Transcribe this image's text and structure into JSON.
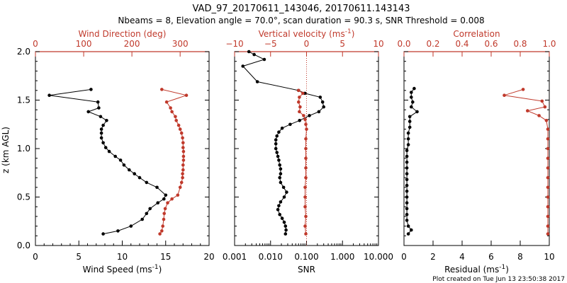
{
  "header": {
    "title": "VAD_97_20170611_143046, 20170611.143143",
    "subtitle": "Nbeams = 8, Elevation angle = 70.0°, scan duration = 90.3 s, SNR Threshold = 0.008"
  },
  "footer": {
    "created": "Plot created on Tue Jun 13 23:50:38 2017"
  },
  "y_axis": {
    "label": "z (km AGL)",
    "ylim": [
      0.0,
      2.0
    ],
    "ticks": [
      0.0,
      0.5,
      1.0,
      1.5,
      2.0
    ],
    "tick_labels": [
      "0.0",
      "0.5",
      "1.0",
      "1.5",
      "2.0"
    ]
  },
  "colors": {
    "black": "#000000",
    "red": "#c0392b"
  },
  "chart_data": [
    {
      "type": "line",
      "panel": "left",
      "grid": false,
      "ylim": [
        0.0,
        2.0
      ],
      "bottom_axis": {
        "label_main": "Wind Speed (ms",
        "label_sup": "-1",
        "label_end": ")",
        "xlim": [
          0,
          20
        ],
        "ticks": [
          0,
          5,
          10,
          15,
          20
        ],
        "tick_labels": [
          "0",
          "5",
          "10",
          "15",
          "20"
        ],
        "minor_ticks": [
          1,
          2,
          3,
          4,
          6,
          7,
          8,
          9,
          11,
          12,
          13,
          14,
          16,
          17,
          18,
          19
        ]
      },
      "top_axis": {
        "label": "Wind Direction (deg)",
        "xlim": [
          0,
          360
        ],
        "ticks": [
          0,
          100,
          200,
          300
        ],
        "tick_labels": [
          "0",
          "100",
          "200",
          "300"
        ]
      },
      "series": [
        {
          "axis": "bottom",
          "color": "#000000",
          "points": [
            [
              7.8,
              0.12
            ],
            [
              9.5,
              0.15
            ],
            [
              11,
              0.2
            ],
            [
              12.3,
              0.27
            ],
            [
              12.8,
              0.33
            ],
            [
              13.2,
              0.38
            ],
            [
              14.1,
              0.44
            ],
            [
              14.8,
              0.48
            ],
            [
              15,
              0.52
            ],
            [
              14,
              0.6
            ],
            [
              12.8,
              0.65
            ],
            [
              12,
              0.7
            ],
            [
              11.4,
              0.74
            ],
            [
              10.8,
              0.78
            ],
            [
              10.2,
              0.83
            ],
            [
              9.8,
              0.88
            ],
            [
              9.2,
              0.92
            ],
            [
              8.5,
              0.97
            ],
            [
              8.1,
              1.01
            ],
            [
              7.8,
              1.06
            ],
            [
              7.6,
              1.11
            ],
            [
              7.6,
              1.16
            ],
            [
              7.6,
              1.2
            ],
            [
              7.8,
              1.24
            ],
            [
              8.2,
              1.29
            ],
            [
              7.5,
              1.33
            ],
            [
              6.1,
              1.38
            ],
            [
              7.3,
              1.42
            ],
            [
              7.2,
              1.48
            ],
            [
              1.6,
              1.55
            ],
            [
              6.4,
              1.61
            ]
          ]
        },
        {
          "axis": "top",
          "color": "#c0392b",
          "points": [
            [
              258,
              0.12
            ],
            [
              262,
              0.15
            ],
            [
              264,
              0.2
            ],
            [
              266,
              0.27
            ],
            [
              267,
              0.33
            ],
            [
              269,
              0.38
            ],
            [
              274,
              0.44
            ],
            [
              283,
              0.48
            ],
            [
              295,
              0.52
            ],
            [
              300,
              0.6
            ],
            [
              303,
              0.65
            ],
            [
              305,
              0.7
            ],
            [
              305,
              0.74
            ],
            [
              306,
              0.78
            ],
            [
              306,
              0.83
            ],
            [
              307,
              0.88
            ],
            [
              307,
              0.92
            ],
            [
              307,
              0.97
            ],
            [
              306,
              1.01
            ],
            [
              306,
              1.06
            ],
            [
              305,
              1.11
            ],
            [
              303,
              1.16
            ],
            [
              300,
              1.2
            ],
            [
              297,
              1.24
            ],
            [
              292,
              1.29
            ],
            [
              290,
              1.33
            ],
            [
              283,
              1.38
            ],
            [
              280,
              1.42
            ],
            [
              272,
              1.48
            ],
            [
              313,
              1.55
            ],
            [
              262,
              1.61
            ]
          ]
        }
      ]
    },
    {
      "type": "line",
      "panel": "middle",
      "grid": false,
      "ylim": [
        0.0,
        2.0
      ],
      "bottom_axis": {
        "label": "SNR",
        "scale": "log",
        "xlim": [
          0.001,
          10.0
        ],
        "ticks": [
          0.001,
          0.01,
          0.1,
          1.0,
          10.0
        ],
        "tick_labels": [
          "0.001",
          "0.010",
          "0.100",
          "1.000",
          "10.000"
        ]
      },
      "top_axis": {
        "label_main": "Vertical velocity (ms",
        "label_sup": "-1",
        "label_end": ")",
        "xlim": [
          -10,
          10
        ],
        "ticks": [
          -10,
          -5,
          0,
          5,
          10
        ],
        "tick_labels": [
          "−10",
          "−5",
          "0",
          "5",
          "10"
        ]
      },
      "reference_line": {
        "axis": "top",
        "x": 0,
        "style": "dotted",
        "color": "#c0392b"
      },
      "series": [
        {
          "axis": "bottom",
          "color": "#000000",
          "points": [
            [
              0.026,
              0.12
            ],
            [
              0.027,
              0.16
            ],
            [
              0.026,
              0.2
            ],
            [
              0.024,
              0.24
            ],
            [
              0.021,
              0.28
            ],
            [
              0.018,
              0.32
            ],
            [
              0.016,
              0.37
            ],
            [
              0.017,
              0.41
            ],
            [
              0.019,
              0.45
            ],
            [
              0.024,
              0.5
            ],
            [
              0.028,
              0.55
            ],
            [
              0.023,
              0.6
            ],
            [
              0.019,
              0.65
            ],
            [
              0.018,
              0.7
            ],
            [
              0.019,
              0.74
            ],
            [
              0.019,
              0.79
            ],
            [
              0.018,
              0.83
            ],
            [
              0.017,
              0.88
            ],
            [
              0.016,
              0.92
            ],
            [
              0.015,
              0.96
            ],
            [
              0.014,
              1.0
            ],
            [
              0.014,
              1.05
            ],
            [
              0.014,
              1.09
            ],
            [
              0.015,
              1.13
            ],
            [
              0.017,
              1.17
            ],
            [
              0.021,
              1.21
            ],
            [
              0.035,
              1.25
            ],
            [
              0.064,
              1.29
            ],
            [
              0.12,
              1.34
            ],
            [
              0.22,
              1.38
            ],
            [
              0.3,
              1.43
            ],
            [
              0.28,
              1.48
            ],
            [
              0.24,
              1.53
            ],
            [
              0.09,
              1.57
            ],
            [
              0.06,
              1.6
            ],
            [
              0.0043,
              1.69
            ],
            [
              0.0017,
              1.85
            ],
            [
              0.0067,
              1.92
            ],
            [
              0.0035,
              1.97
            ],
            [
              0.0025,
              2.0
            ]
          ]
        },
        {
          "axis": "top",
          "color": "#c0392b",
          "points": [
            [
              -0.1,
              0.12
            ],
            [
              -0.2,
              0.2
            ],
            [
              -0.1,
              0.3
            ],
            [
              -0.2,
              0.4
            ],
            [
              -0.2,
              0.5
            ],
            [
              -0.2,
              0.6
            ],
            [
              -0.1,
              0.7
            ],
            [
              -0.1,
              0.8
            ],
            [
              -0.1,
              0.9
            ],
            [
              -0.1,
              1.0
            ],
            [
              -0.1,
              1.1
            ],
            [
              0.0,
              1.2
            ],
            [
              -0.1,
              1.25
            ],
            [
              -0.2,
              1.3
            ],
            [
              -0.4,
              1.34
            ],
            [
              -1.0,
              1.38
            ],
            [
              -0.9,
              1.43
            ],
            [
              -1.1,
              1.48
            ],
            [
              -1.0,
              1.53
            ],
            [
              -0.5,
              1.57
            ],
            [
              -1.1,
              1.6
            ]
          ]
        }
      ]
    },
    {
      "type": "line",
      "panel": "right",
      "grid": false,
      "ylim": [
        0.0,
        2.0
      ],
      "bottom_axis": {
        "label_main": "Residual (ms",
        "label_sup": "-1",
        "label_end": ")",
        "xlim": [
          0,
          10
        ],
        "ticks": [
          0,
          2,
          4,
          6,
          8,
          10
        ],
        "tick_labels": [
          "0",
          "2",
          "4",
          "6",
          "8",
          "10"
        ]
      },
      "top_axis": {
        "label": "Correlation",
        "xlim": [
          0.0,
          1.0
        ],
        "ticks": [
          0.0,
          0.2,
          0.4,
          0.6,
          0.8,
          1.0
        ],
        "tick_labels": [
          "0.0",
          "0.2",
          "0.4",
          "0.6",
          "0.8",
          "1.0"
        ]
      },
      "series": [
        {
          "axis": "bottom",
          "color": "#000000",
          "points": [
            [
              0.3,
              0.12
            ],
            [
              0.5,
              0.16
            ],
            [
              0.3,
              0.2
            ],
            [
              0.2,
              0.26
            ],
            [
              0.2,
              0.32
            ],
            [
              0.2,
              0.38
            ],
            [
              0.2,
              0.44
            ],
            [
              0.2,
              0.5
            ],
            [
              0.2,
              0.56
            ],
            [
              0.2,
              0.62
            ],
            [
              0.2,
              0.68
            ],
            [
              0.2,
              0.74
            ],
            [
              0.2,
              0.8
            ],
            [
              0.2,
              0.86
            ],
            [
              0.2,
              0.92
            ],
            [
              0.2,
              0.98
            ],
            [
              0.3,
              1.04
            ],
            [
              0.3,
              1.1
            ],
            [
              0.3,
              1.16
            ],
            [
              0.4,
              1.22
            ],
            [
              0.4,
              1.28
            ],
            [
              0.4,
              1.33
            ],
            [
              0.9,
              1.38
            ],
            [
              0.5,
              1.43
            ],
            [
              0.6,
              1.48
            ],
            [
              0.5,
              1.53
            ],
            [
              0.5,
              1.58
            ],
            [
              0.7,
              1.62
            ]
          ]
        },
        {
          "axis": "top",
          "color": "#c0392b",
          "points": [
            [
              0.99,
              0.12
            ],
            [
              0.99,
              0.2
            ],
            [
              0.99,
              0.3
            ],
            [
              0.99,
              0.4
            ],
            [
              0.99,
              0.5
            ],
            [
              0.99,
              0.6
            ],
            [
              0.99,
              0.7
            ],
            [
              0.99,
              0.8
            ],
            [
              0.99,
              0.9
            ],
            [
              0.99,
              1.0
            ],
            [
              0.99,
              1.1
            ],
            [
              0.99,
              1.2
            ],
            [
              0.98,
              1.29
            ],
            [
              0.93,
              1.34
            ],
            [
              0.85,
              1.39
            ],
            [
              0.97,
              1.43
            ],
            [
              0.95,
              1.49
            ],
            [
              0.69,
              1.55
            ],
            [
              0.82,
              1.61
            ]
          ]
        }
      ]
    }
  ]
}
